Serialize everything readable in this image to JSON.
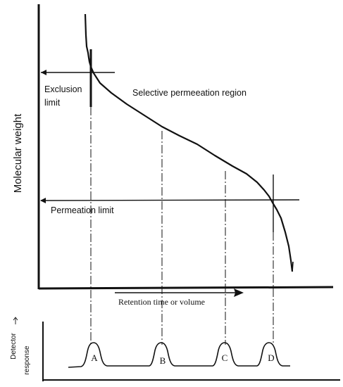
{
  "axes": {
    "y_label": "Molecular weight",
    "x_label": "Retention time or volume",
    "detector_label_line1": "Detector",
    "detector_label_line2": "response"
  },
  "regions": {
    "exclusion_line1": "Exclusion",
    "exclusion_line2": "limit",
    "selective": "Selective permeeation region",
    "permeation": "Permeation limit"
  },
  "peaks": [
    {
      "label": "A"
    },
    {
      "label": "B"
    },
    {
      "label": "C"
    },
    {
      "label": "D"
    }
  ]
}
